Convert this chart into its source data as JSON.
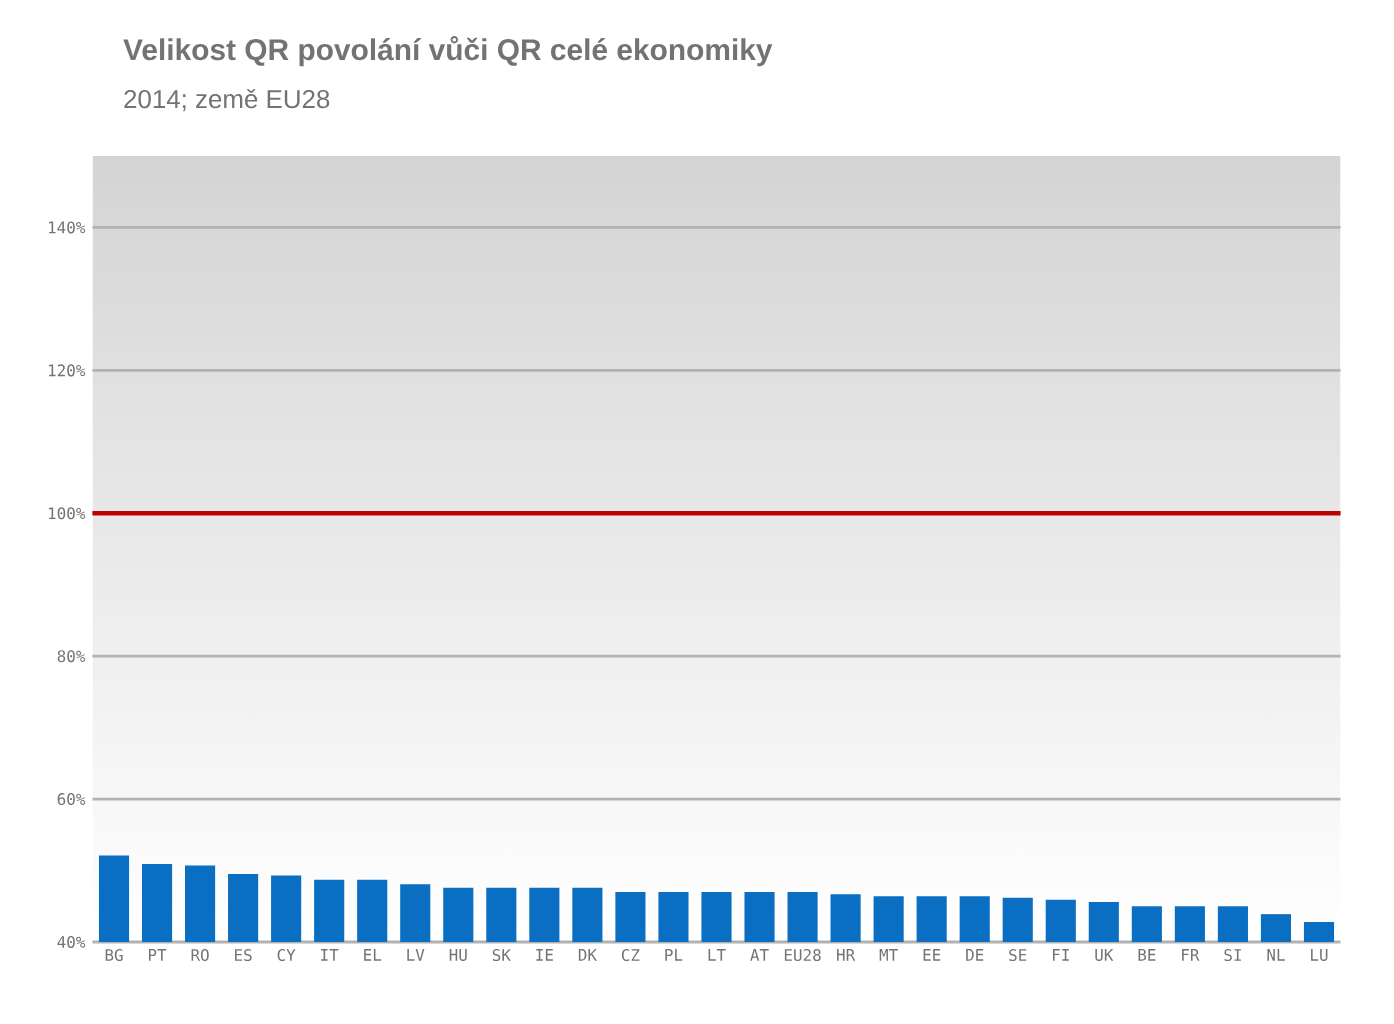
{
  "chart_data": {
    "type": "bar",
    "title": "Velikost QR povolání vůči QR celé ekonomiky",
    "subtitle": "2014; země EU28",
    "categories": [
      "BG",
      "PT",
      "RO",
      "ES",
      "CY",
      "IT",
      "EL",
      "LV",
      "HU",
      "SK",
      "IE",
      "DK",
      "CZ",
      "PL",
      "LT",
      "AT",
      "EU28",
      "HR",
      "MT",
      "EE",
      "DE",
      "SE",
      "FI",
      "UK",
      "BE",
      "FR",
      "SI",
      "NL",
      "LU"
    ],
    "values": [
      52.1,
      50.9,
      50.7,
      49.5,
      49.3,
      48.7,
      48.7,
      48.1,
      47.6,
      47.6,
      47.6,
      47.6,
      47.0,
      47.0,
      47.0,
      47.0,
      47.0,
      46.7,
      46.4,
      46.4,
      46.4,
      46.2,
      45.9,
      45.6,
      45.0,
      45.0,
      45.0,
      43.9,
      42.8
    ],
    "color": "#0a6fc2",
    "ylim": [
      40,
      150
    ],
    "yticks": [
      {
        "value": 40,
        "label": "40%"
      },
      {
        "value": 60,
        "label": "60%"
      },
      {
        "value": 80,
        "label": "80%"
      },
      {
        "value": 100,
        "label": "100%"
      },
      {
        "value": 120,
        "label": "120%"
      },
      {
        "value": 140,
        "label": "140%"
      }
    ],
    "grid": "y",
    "ref_lines": [
      {
        "axis": "y",
        "value": 100,
        "color": "#c00000"
      }
    ]
  }
}
